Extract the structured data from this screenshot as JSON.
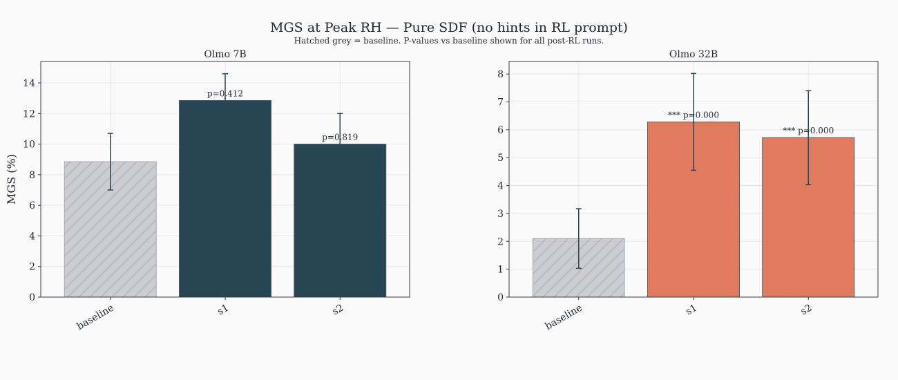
{
  "figure": {
    "title": "MGS at Peak RH — Pure SDF (no hints in RL prompt)",
    "subtitle": "Hatched grey = baseline. P-values vs baseline shown for all post-RL runs.",
    "colors": {
      "baseline": "#cbcdd3",
      "olmo7b": "#264653",
      "olmo32b": "#e07b60",
      "errorbar": "#264653",
      "grid": "#e6e6e6"
    }
  },
  "chart_data": [
    {
      "type": "bar",
      "title": "Olmo 7B",
      "xlabel": "",
      "ylabel": "MGS (%)",
      "categories": [
        "baseline",
        "s1",
        "s2"
      ],
      "values": [
        8.85,
        12.85,
        10.0
      ],
      "error_low": [
        7.0,
        11.1,
        8.0
      ],
      "error_high": [
        10.7,
        14.6,
        12.0
      ],
      "annotations": [
        "",
        "p=0.412",
        "p=0.819"
      ],
      "hatched": [
        true,
        false,
        false
      ],
      "ylim": [
        0,
        15.4
      ],
      "yticks": [
        0,
        2,
        4,
        6,
        8,
        10,
        12,
        14
      ],
      "grid": true
    },
    {
      "type": "bar",
      "title": "Olmo 32B",
      "xlabel": "",
      "ylabel": "",
      "categories": [
        "baseline",
        "s1",
        "s2"
      ],
      "values": [
        2.1,
        6.28,
        5.72
      ],
      "error_low": [
        1.03,
        4.55,
        4.03
      ],
      "error_high": [
        3.17,
        8.02,
        7.4
      ],
      "annotations": [
        "",
        "*** p=0.000",
        "*** p=0.000"
      ],
      "hatched": [
        true,
        false,
        false
      ],
      "ylim": [
        0,
        8.45
      ],
      "yticks": [
        0,
        1,
        2,
        3,
        4,
        5,
        6,
        7,
        8
      ],
      "grid": true
    }
  ]
}
